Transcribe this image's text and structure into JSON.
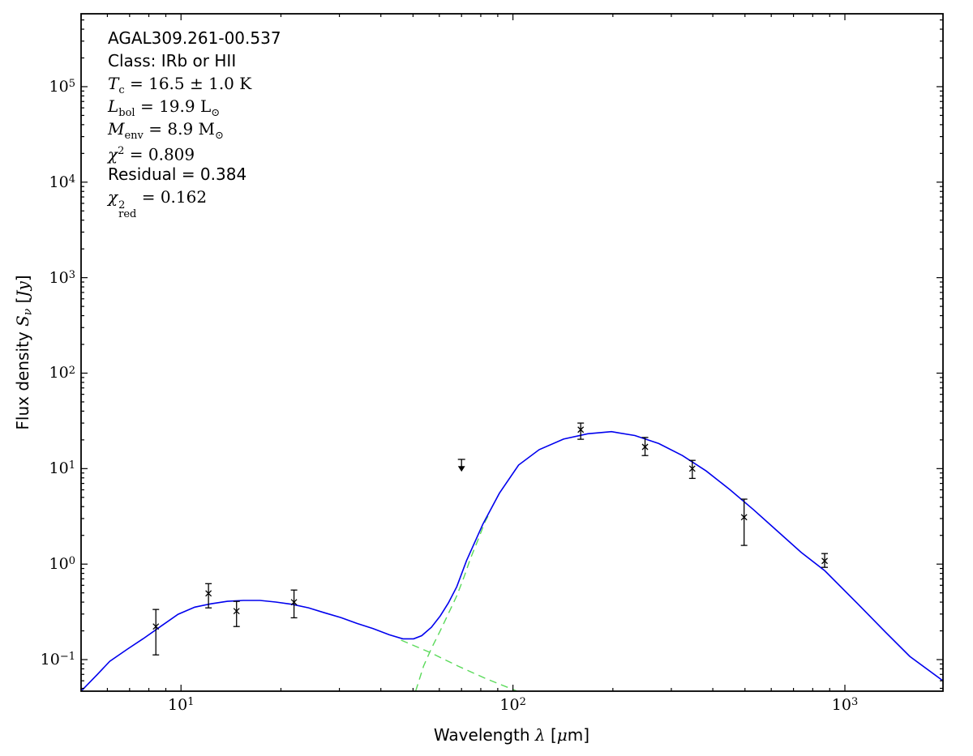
{
  "annotation": {
    "source": "AGAL309.261-00.537",
    "class_line": "Class: IRb or HII",
    "temp": {
      "sym": "T",
      "sub": "c",
      "eq": " = 16.5 ± 1.0 K"
    },
    "lbol": {
      "sym": "L",
      "sub": "bol",
      "eq": " = 19.9 L",
      "unit_sub": "⊙"
    },
    "menv": {
      "sym": "M",
      "sub": "env",
      "eq": " = 8.9 M",
      "unit_sub": "⊙"
    },
    "chi2": {
      "sym": "χ",
      "sup": "2",
      "eq": " = 0.809"
    },
    "residual": "Residual = 0.384",
    "chi2red": {
      "sym": "χ",
      "sup": "2",
      "sub": "red",
      "eq": " = 0.162"
    }
  },
  "chart_data": {
    "type": "line",
    "title": "",
    "xlabel_parts": [
      {
        "t": "Wavelength ",
        "style": "sans"
      },
      {
        "t": "λ",
        "style": "italic"
      },
      {
        "t": " [",
        "style": "sans"
      },
      {
        "t": "μ",
        "style": "italic"
      },
      {
        "t": "m]",
        "style": "sans"
      }
    ],
    "ylabel_parts": [
      {
        "t": "Flux density ",
        "style": "sans"
      },
      {
        "t": "S",
        "style": "italic"
      },
      {
        "t": "ν",
        "style": "sub"
      },
      {
        "t": " [",
        "style": "sans"
      },
      {
        "t": "Jy",
        "style": "italic"
      },
      {
        "t": "]",
        "style": "sans"
      }
    ],
    "x_axis": {
      "scale": "log",
      "min": 5.0,
      "max": 1975,
      "tick_base": "10",
      "label_exponents": [
        1,
        2,
        3
      ]
    },
    "y_axis": {
      "scale": "log",
      "min": 0.0467,
      "max": 580000,
      "tick_base": "10",
      "label_exponents": [
        -1,
        0,
        1,
        2,
        3,
        4,
        5
      ]
    },
    "grid": false,
    "legend": "none",
    "colors": {
      "model": "#0000ee",
      "components": "#5ada5a",
      "data": "#000000",
      "frame": "#000000"
    },
    "series": [
      {
        "name": "total-model-fit",
        "style": "solid",
        "points": [
          [
            5.0,
            0.0467
          ],
          [
            5.6,
            0.07
          ],
          [
            6.1,
            0.096
          ],
          [
            6.9,
            0.129
          ],
          [
            7.7,
            0.166
          ],
          [
            8.7,
            0.224
          ],
          [
            9.8,
            0.298
          ],
          [
            11.0,
            0.354
          ],
          [
            12.3,
            0.384
          ],
          [
            13.8,
            0.408
          ],
          [
            15.4,
            0.417
          ],
          [
            17.3,
            0.417
          ],
          [
            19.3,
            0.401
          ],
          [
            21.6,
            0.379
          ],
          [
            24.2,
            0.349
          ],
          [
            27.1,
            0.309
          ],
          [
            30.3,
            0.276
          ],
          [
            33.9,
            0.239
          ],
          [
            37.9,
            0.211
          ],
          [
            42.4,
            0.182
          ],
          [
            46.6,
            0.165
          ],
          [
            50.2,
            0.165
          ],
          [
            53.1,
            0.178
          ],
          [
            56.8,
            0.218
          ],
          [
            60.4,
            0.287
          ],
          [
            63.9,
            0.392
          ],
          [
            67.7,
            0.579
          ],
          [
            72.5,
            1.09
          ],
          [
            81.2,
            2.63
          ],
          [
            91.0,
            5.53
          ],
          [
            104,
            10.9
          ],
          [
            120,
            15.8
          ],
          [
            142,
            20.4
          ],
          [
            168,
            23.2
          ],
          [
            198,
            24.4
          ],
          [
            233,
            22.2
          ],
          [
            275,
            18.3
          ],
          [
            324,
            13.7
          ],
          [
            382,
            9.46
          ],
          [
            450,
            6.04
          ],
          [
            531,
            3.7
          ],
          [
            626,
            2.22
          ],
          [
            738,
            1.33
          ],
          [
            871,
            0.85
          ],
          [
            1091,
            0.387
          ],
          [
            1324,
            0.195
          ],
          [
            1569,
            0.108
          ],
          [
            1975,
            0.06
          ]
        ]
      },
      {
        "name": "warm-component",
        "style": "dashed",
        "points": [
          [
            46.0,
            0.16
          ],
          [
            56.2,
            0.119
          ],
          [
            68.3,
            0.0856
          ],
          [
            83.2,
            0.0628
          ],
          [
            103,
            0.0467
          ]
        ]
      },
      {
        "name": "cold-component",
        "style": "dashed",
        "points": [
          [
            50.9,
            0.0467
          ],
          [
            53.8,
            0.0855
          ],
          [
            56.8,
            0.131
          ],
          [
            60.4,
            0.201
          ],
          [
            63.9,
            0.303
          ],
          [
            67.7,
            0.465
          ],
          [
            71.2,
            0.73
          ],
          [
            74.4,
            1.13
          ],
          [
            78.5,
            1.8
          ],
          [
            82.5,
            2.8
          ],
          [
            85.0,
            3.4
          ]
        ]
      }
    ],
    "data_points": [
      {
        "x": 8.4,
        "y": 0.222,
        "y_lo": 0.112,
        "y_hi": 0.335
      },
      {
        "x": 12.1,
        "y": 0.494,
        "y_lo": 0.348,
        "y_hi": 0.624
      },
      {
        "x": 14.7,
        "y": 0.322,
        "y_lo": 0.222,
        "y_hi": 0.407
      },
      {
        "x": 21.9,
        "y": 0.399,
        "y_lo": 0.274,
        "y_hi": 0.535
      },
      {
        "x": 160,
        "y": 25.6,
        "y_lo": 20.3,
        "y_hi": 30.0
      },
      {
        "x": 250,
        "y": 16.9,
        "y_lo": 13.7,
        "y_hi": 21.2
      },
      {
        "x": 347,
        "y": 10.0,
        "y_lo": 7.9,
        "y_hi": 12.2
      },
      {
        "x": 497,
        "y": 3.1,
        "y_lo": 1.57,
        "y_hi": 4.79
      },
      {
        "x": 869,
        "y": 1.08,
        "y_lo": 0.925,
        "y_hi": 1.29
      }
    ],
    "upper_limits": [
      {
        "x": 70.0,
        "y": 12.5
      }
    ]
  }
}
